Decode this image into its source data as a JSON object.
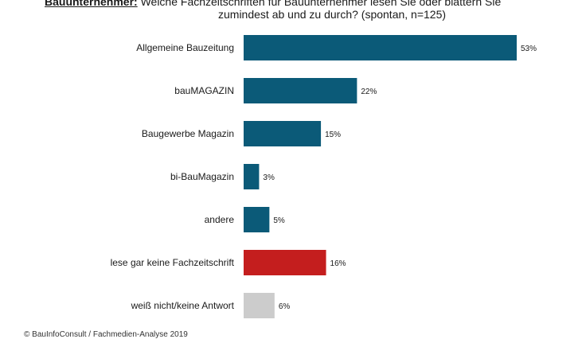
{
  "header": {
    "prefix": "Bauunternehmer:",
    "question_line1": " Welche Fachzeitschriften für Bauunternehmer lesen Sie oder blättern Sie",
    "question_line2": "zumindest ab und zu durch? (spontan, n=125)"
  },
  "footer": {
    "source": "© BauInfoConsult / Fachmedien-Analyse 2019"
  },
  "colors": {
    "primary": "#0b5a78",
    "highlight": "#c41e1e",
    "neutral": "#cccccc"
  },
  "chart_data": {
    "type": "bar",
    "orientation": "horizontal",
    "categories": [
      "Allgemeine Bauzeitung",
      "bauMAGAZIN",
      "Baugewerbe Magazin",
      "bi-BauMagazin",
      "andere",
      "lese gar keine Fachzeitschrift",
      "weiß nicht/keine Antwort"
    ],
    "values": [
      53,
      22,
      15,
      3,
      5,
      16,
      6
    ],
    "value_labels": [
      "53%",
      "22%",
      "15%",
      "3%",
      "5%",
      "16%",
      "6%"
    ],
    "bar_colors": [
      "#0b5a78",
      "#0b5a78",
      "#0b5a78",
      "#0b5a78",
      "#0b5a78",
      "#c41e1e",
      "#cccccc"
    ],
    "unit": "%",
    "xlim": [
      0,
      53
    ],
    "grid": false,
    "legend": "none"
  }
}
